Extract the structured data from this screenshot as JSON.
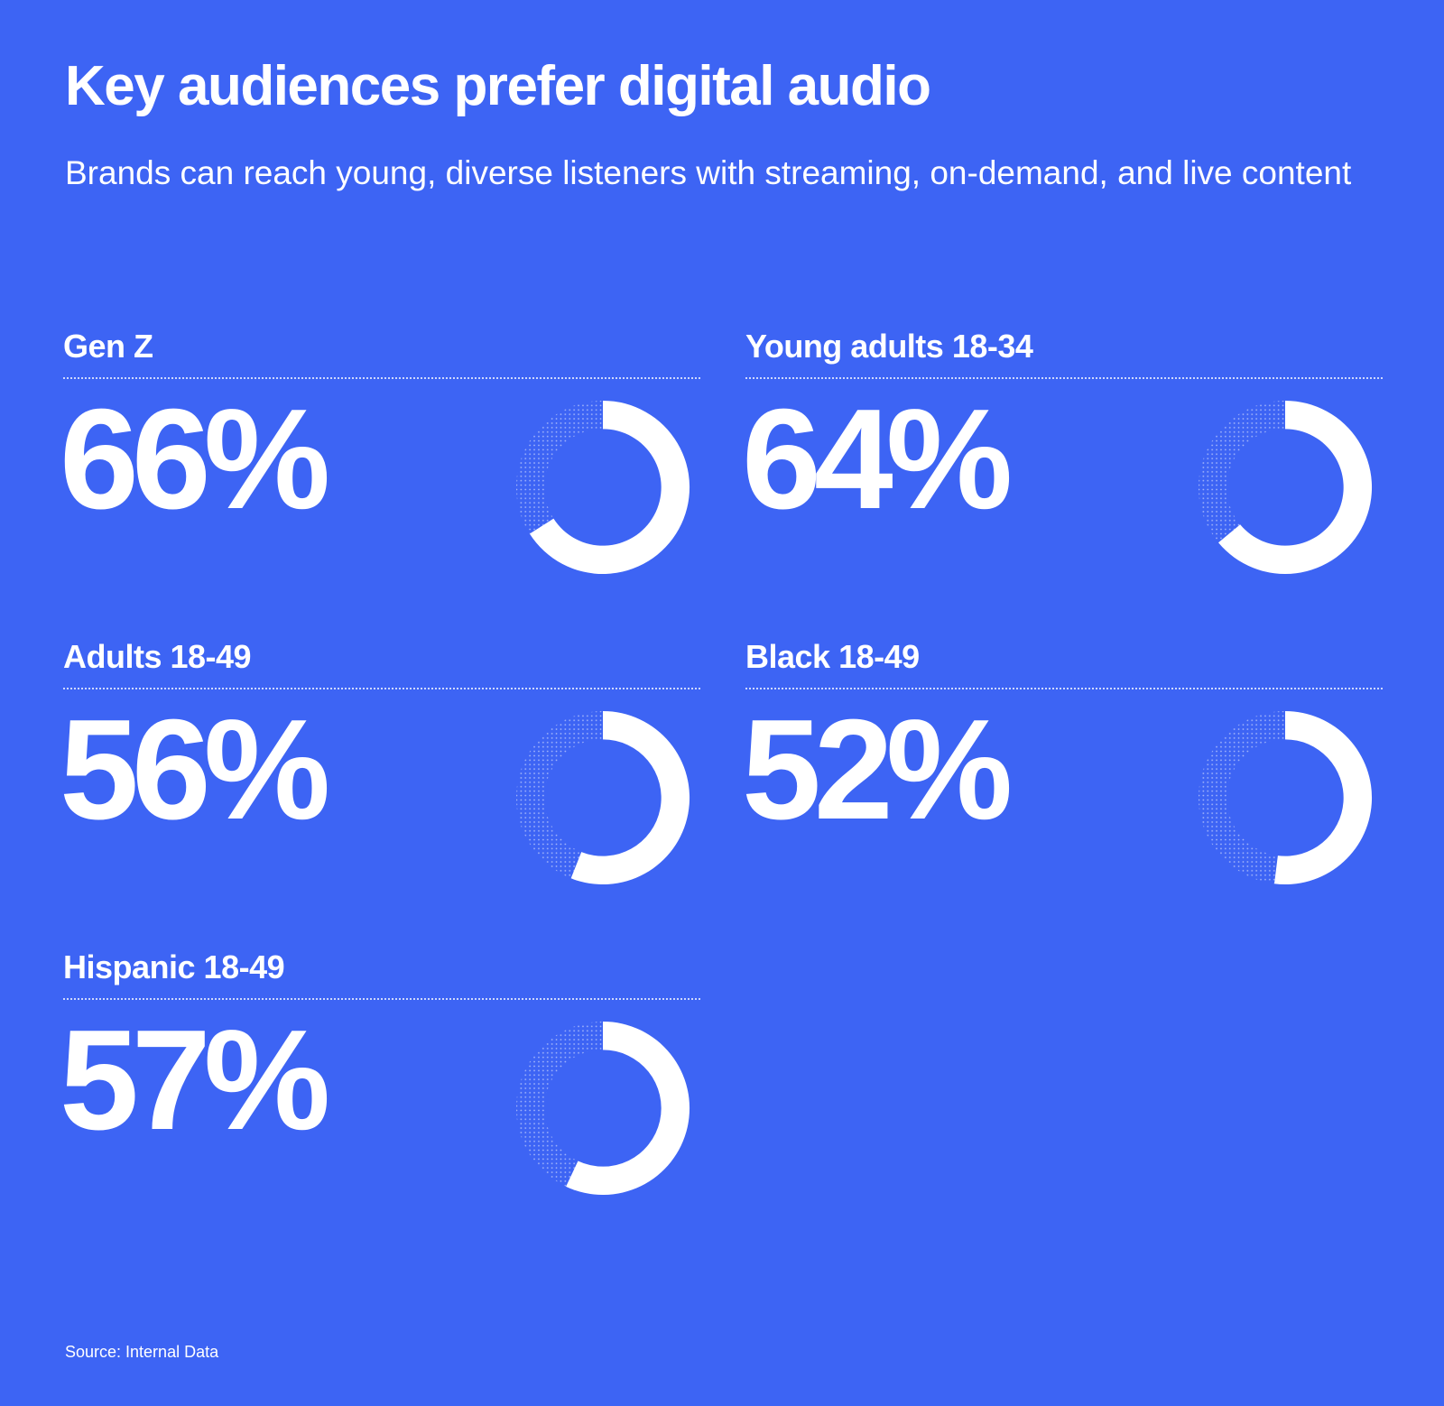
{
  "title": "Key audiences prefer digital audio",
  "subtitle": "Brands can reach young, diverse listeners with streaming, on-demand, and live content",
  "source": "Source: Internal Data",
  "colors": {
    "background": "#3d64f4",
    "foreground": "#ffffff"
  },
  "chart_data": {
    "type": "pie",
    "variant": "donut",
    "title": "Key audiences prefer digital audio",
    "subtitle": "Brands can reach young, diverse listeners with streaming, on-demand, and live content",
    "categories": [
      "Gen Z",
      "Young adults 18-34",
      "Adults 18-49",
      "Black 18-49",
      "Hispanic 18-49"
    ],
    "values": [
      66,
      64,
      56,
      52,
      57
    ],
    "value_labels": [
      "66%",
      "64%",
      "56%",
      "52%",
      "57%"
    ],
    "unit": "%",
    "max": 100,
    "source": "Source: Internal Data"
  }
}
